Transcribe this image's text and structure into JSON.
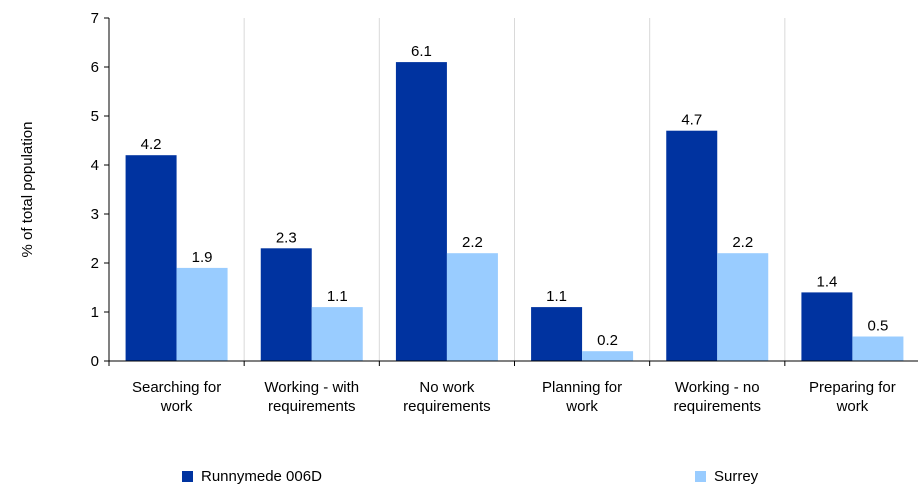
{
  "chart_data": {
    "type": "bar",
    "title": "",
    "xlabel": "",
    "ylabel": "% of total population",
    "ylim": [
      0,
      7
    ],
    "yticks": [
      "0",
      "1",
      "2",
      "3",
      "4",
      "5",
      "6",
      "7"
    ],
    "grid": "vertical category separators",
    "legend_position": "bottom",
    "categories": [
      [
        "Searching for",
        "work"
      ],
      [
        "Working - with",
        "requirements"
      ],
      [
        "No work",
        "requirements"
      ],
      [
        "Planning for",
        "work"
      ],
      [
        "Working - no",
        "requirements"
      ],
      [
        "Preparing for",
        "work"
      ]
    ],
    "series": [
      {
        "name": "Runnymede 006D",
        "color": "#0033a0",
        "values": [
          4.2,
          2.3,
          6.1,
          1.1,
          4.7,
          1.4
        ],
        "labels": [
          "4.2",
          "2.3",
          "6.1",
          "1.1",
          "4.7",
          "1.4"
        ]
      },
      {
        "name": "Surrey",
        "color": "#99ccff",
        "values": [
          1.9,
          1.1,
          2.2,
          0.2,
          2.2,
          0.5
        ],
        "labels": [
          "1.9",
          "1.1",
          "2.2",
          "0.2",
          "2.2",
          "0.5"
        ]
      }
    ]
  }
}
